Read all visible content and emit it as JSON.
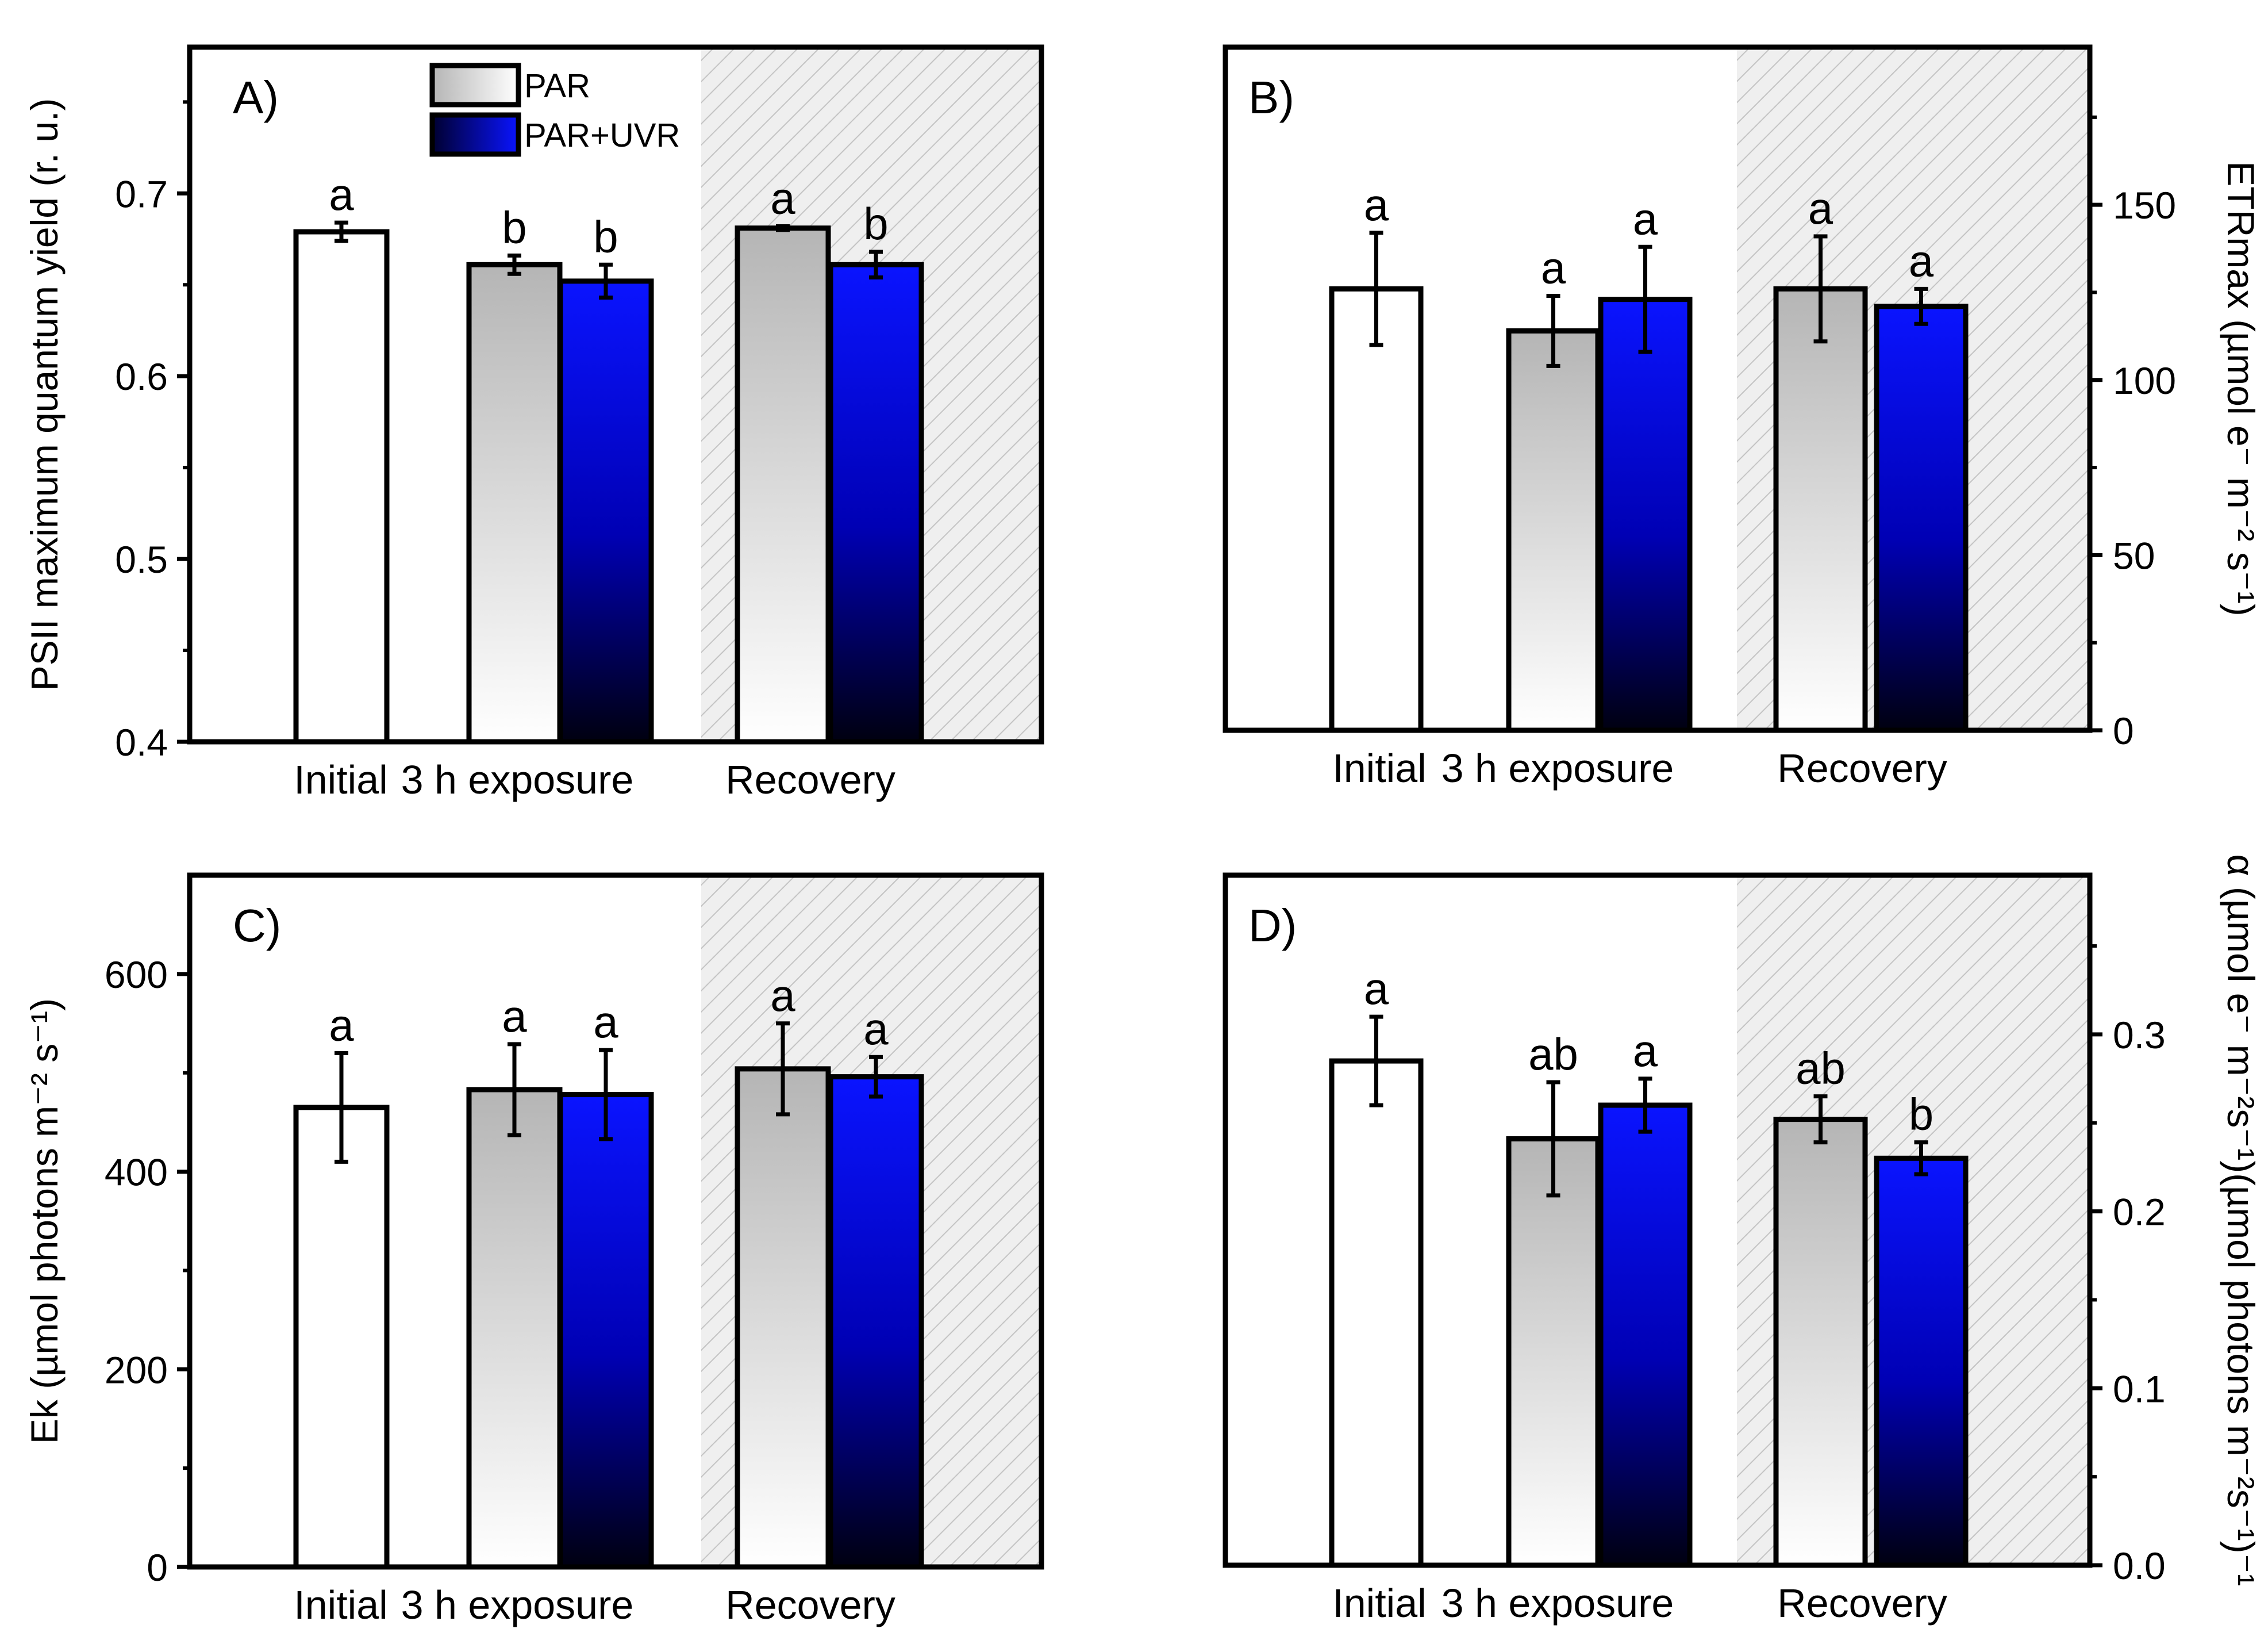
{
  "chart_data": [
    {
      "id": "A",
      "type": "bar",
      "panel_label": "A)",
      "ylabel": "PSII maximum quantum yield (r. u.)",
      "ylabel_side": "left",
      "ylim": [
        0.4,
        0.78
      ],
      "yticks": [
        0.4,
        0.5,
        0.6,
        0.7
      ],
      "ytick_labels": [
        "0.4",
        "0.5",
        "0.6",
        "0.7"
      ],
      "legend": [
        {
          "name": "PAR",
          "fill": "grey-gradient"
        },
        {
          "name": "PAR+UVR",
          "fill": "blue-gradient"
        }
      ],
      "groups": [
        {
          "label": "Initial",
          "bars": [
            {
              "series": "Initial",
              "value": 0.679,
              "err": 0.005,
              "sig": "a"
            }
          ]
        },
        {
          "label": "3 h exposure",
          "bars": [
            {
              "series": "PAR",
              "value": 0.661,
              "err": 0.005,
              "sig": "b"
            },
            {
              "series": "PAR+UVR",
              "value": 0.652,
              "err": 0.009,
              "sig": "b"
            }
          ]
        },
        {
          "label": "Recovery",
          "shaded": true,
          "bars": [
            {
              "series": "PAR",
              "value": 0.681,
              "err": 0.001,
              "sig": "a"
            },
            {
              "series": "PAR+UVR",
              "value": 0.661,
              "err": 0.007,
              "sig": "b"
            }
          ]
        }
      ]
    },
    {
      "id": "B",
      "type": "bar",
      "panel_label": "B)",
      "ylabel": "ETRmax (µmol e⁻ m⁻² s⁻¹)",
      "ylabel_side": "right",
      "ylim": [
        0,
        195
      ],
      "yticks": [
        0,
        50,
        100,
        150
      ],
      "ytick_labels": [
        "0",
        "50",
        "100",
        "150"
      ],
      "groups": [
        {
          "label": "Initial",
          "bars": [
            {
              "series": "Initial",
              "value": 126,
              "err": 16,
              "sig": "a"
            }
          ]
        },
        {
          "label": "3 h exposure",
          "bars": [
            {
              "series": "PAR",
              "value": 114,
              "err": 10,
              "sig": "a"
            },
            {
              "series": "PAR+UVR",
              "value": 123,
              "err": 15,
              "sig": "a"
            }
          ]
        },
        {
          "label": "Recovery",
          "shaded": true,
          "bars": [
            {
              "series": "PAR",
              "value": 126,
              "err": 15,
              "sig": "a"
            },
            {
              "series": "PAR+UVR",
              "value": 121,
              "err": 5,
              "sig": "a"
            }
          ]
        }
      ]
    },
    {
      "id": "C",
      "type": "bar",
      "panel_label": "C)",
      "ylabel": "Ek (µmol photons m⁻² s⁻¹)",
      "ylabel_side": "left",
      "ylim": [
        0,
        700
      ],
      "yticks": [
        0,
        200,
        400,
        600
      ],
      "ytick_labels": [
        "0",
        "200",
        "400",
        "600"
      ],
      "groups": [
        {
          "label": "Initial",
          "bars": [
            {
              "series": "Initial",
              "value": 465,
              "err": 55,
              "sig": "a"
            }
          ]
        },
        {
          "label": "3 h exposure",
          "bars": [
            {
              "series": "PAR",
              "value": 483,
              "err": 46,
              "sig": "a"
            },
            {
              "series": "PAR+UVR",
              "value": 478,
              "err": 45,
              "sig": "a"
            }
          ]
        },
        {
          "label": "Recovery",
          "shaded": true,
          "bars": [
            {
              "series": "PAR",
              "value": 504,
              "err": 46,
              "sig": "a"
            },
            {
              "series": "PAR+UVR",
              "value": 496,
              "err": 20,
              "sig": "a"
            }
          ]
        }
      ]
    },
    {
      "id": "D",
      "type": "bar",
      "panel_label": "D)",
      "ylabel": "α (µmol e⁻ m⁻²s⁻¹)(µmol photons m⁻²s⁻¹)⁻¹",
      "ylabel_side": "right",
      "ylim": [
        0,
        0.39
      ],
      "yticks": [
        0.0,
        0.1,
        0.2,
        0.3
      ],
      "ytick_labels": [
        "0.0",
        "0.1",
        "0.2",
        "0.3"
      ],
      "groups": [
        {
          "label": "Initial",
          "bars": [
            {
              "series": "Initial",
              "value": 0.285,
              "err": 0.025,
              "sig": "a"
            }
          ]
        },
        {
          "label": "3 h exposure",
          "bars": [
            {
              "series": "PAR",
              "value": 0.241,
              "err": 0.032,
              "sig": "ab"
            },
            {
              "series": "PAR+UVR",
              "value": 0.26,
              "err": 0.015,
              "sig": "a"
            }
          ]
        },
        {
          "label": "Recovery",
          "shaded": true,
          "bars": [
            {
              "series": "PAR",
              "value": 0.252,
              "err": 0.013,
              "sig": "ab"
            },
            {
              "series": "PAR+UVR",
              "value": 0.23,
              "err": 0.009,
              "sig": "b"
            }
          ]
        }
      ]
    }
  ]
}
